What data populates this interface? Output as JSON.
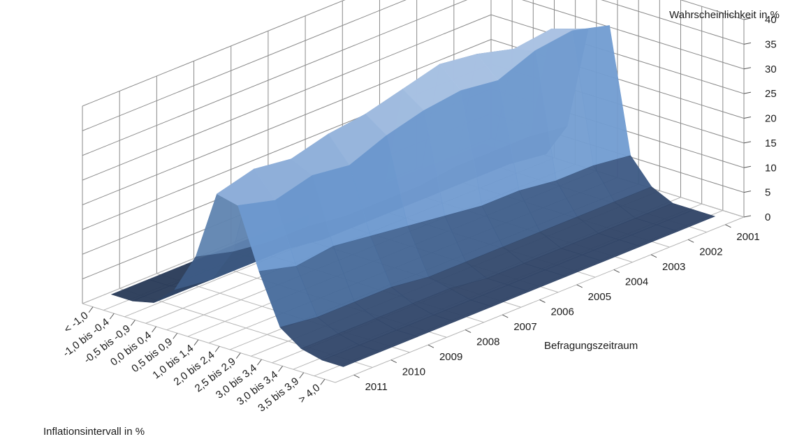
{
  "chart_data": {
    "type": "surface3d",
    "title": "",
    "zlabel": "Wahrscheinlichkeit in %",
    "ylabel": "Befragungszeitraum",
    "xlabel": "Inflationsintervall in %",
    "zlim": [
      0,
      40
    ],
    "z_ticks": [
      "0",
      "5",
      "10",
      "15",
      "20",
      "25",
      "30",
      "35",
      "40"
    ],
    "intervals": [
      "< -1,0",
      "-1,0 bis -0,4",
      "-0,5 bis -0,9",
      "0,0 bis 0,4",
      "0,5 bis 0,9",
      "1,0 bis 1,4",
      "2,0 bis 2,4",
      "2,5 bis 2,9",
      "3,0 bis 3,4",
      "3,0 bis 3,4",
      "3,5 bis 3,9",
      "> 4,0"
    ],
    "periods": [
      "2001",
      "2002",
      "2003",
      "2004",
      "2005",
      "2006",
      "2007",
      "2008",
      "2009",
      "2010",
      "2011"
    ],
    "grid": true,
    "colors": {
      "surface_low": "#2e4060",
      "surface_mid": "#5b8cc8",
      "surface_high": "#c9d8ef",
      "grid": "#8a8a8a"
    },
    "note_values": "approximate probabilities (%) per interval (rows) and survey period (columns 2011 → 2001)",
    "values": [
      [
        1,
        1,
        1,
        1,
        1,
        1,
        1,
        1,
        1,
        1,
        1
      ],
      [
        1,
        1,
        1,
        1,
        1,
        1,
        1,
        1,
        1,
        1,
        1
      ],
      [
        2,
        2,
        2,
        2,
        2,
        2,
        2,
        2,
        2,
        2,
        1
      ],
      [
        6,
        5,
        5,
        5,
        4,
        4,
        4,
        4,
        4,
        4,
        3
      ],
      [
        14,
        12,
        11,
        11,
        10,
        10,
        10,
        11,
        11,
        11,
        10
      ],
      [
        28,
        30,
        29,
        31,
        32,
        34,
        36,
        35,
        33,
        34,
        31
      ],
      [
        27,
        25,
        27,
        26,
        29,
        31,
        32,
        31,
        34,
        35,
        33
      ],
      [
        15,
        13,
        14,
        13,
        12,
        11,
        10,
        10,
        9,
        9,
        8
      ],
      [
        5,
        4,
        4,
        4,
        3,
        3,
        3,
        3,
        3,
        3,
        3
      ],
      [
        2,
        2,
        2,
        2,
        2,
        1,
        1,
        1,
        1,
        1,
        1
      ],
      [
        1,
        1,
        1,
        1,
        1,
        1,
        1,
        1,
        1,
        1,
        1
      ],
      [
        1,
        1,
        1,
        1,
        1,
        1,
        1,
        1,
        1,
        1,
        1
      ]
    ]
  }
}
